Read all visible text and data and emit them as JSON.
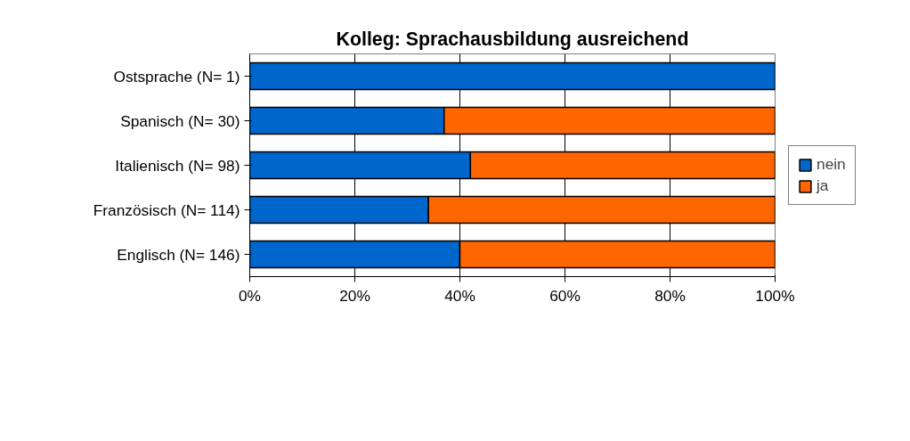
{
  "chart_data": {
    "type": "bar",
    "title": "Kolleg: Sprachausbildung ausreichend",
    "orientation": "horizontal",
    "stacked": true,
    "categories": [
      "Ostsprache (N= 1)",
      "Spanisch (N= 30)",
      "Italienisch (N= 98)",
      "Französisch (N= 114)",
      "Englisch (N= 146)"
    ],
    "series": [
      {
        "name": "nein",
        "color": "#0066cc",
        "values": [
          100,
          37,
          42,
          34,
          40
        ]
      },
      {
        "name": "ja",
        "color": "#ff6600",
        "values": [
          0,
          63,
          58,
          66,
          60
        ]
      }
    ],
    "xlim": [
      0,
      100
    ],
    "xticks": [
      {
        "value": 0,
        "label": "0%"
      },
      {
        "value": 20,
        "label": "20%"
      },
      {
        "value": 40,
        "label": "40%"
      },
      {
        "value": 60,
        "label": "60%"
      },
      {
        "value": 80,
        "label": "80%"
      },
      {
        "value": 100,
        "label": "100%"
      }
    ],
    "grid": "x",
    "legend": "right"
  }
}
